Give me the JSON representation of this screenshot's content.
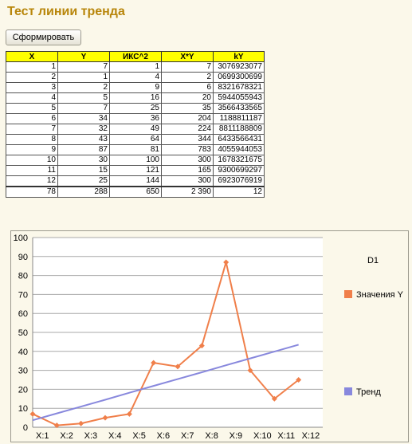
{
  "app": {
    "title": "Тест линии тренда"
  },
  "toolbar": {
    "generate_label": "Сформировать"
  },
  "table": {
    "headers": [
      "X",
      "Y",
      "ИКС^2",
      "X*Y",
      "kY"
    ],
    "rows": [
      [
        "1",
        "7",
        "1",
        "7",
        "3076923077"
      ],
      [
        "2",
        "1",
        "4",
        "2",
        "0699300699"
      ],
      [
        "3",
        "2",
        "9",
        "6",
        "8321678321"
      ],
      [
        "4",
        "5",
        "16",
        "20",
        "5944055943"
      ],
      [
        "5",
        "7",
        "25",
        "35",
        "3566433565"
      ],
      [
        "6",
        "34",
        "36",
        "204",
        "1188811187"
      ],
      [
        "7",
        "32",
        "49",
        "224",
        "8811188809"
      ],
      [
        "8",
        "43",
        "64",
        "344",
        "6433566431"
      ],
      [
        "9",
        "87",
        "81",
        "783",
        "4055944053"
      ],
      [
        "10",
        "30",
        "100",
        "300",
        "1678321675"
      ],
      [
        "11",
        "15",
        "121",
        "165",
        "9300699297"
      ],
      [
        "12",
        "25",
        "144",
        "300",
        "6923076919"
      ]
    ],
    "totals": [
      "78",
      "288",
      "650",
      "2 390",
      "12"
    ]
  },
  "chart_data": {
    "type": "line",
    "title": "D1",
    "categories": [
      "X:1",
      "X:2",
      "X:3",
      "X:4",
      "X:5",
      "X:6",
      "X:7",
      "X:8",
      "X:9",
      "X:10",
      "X:11",
      "X:12"
    ],
    "ylim": [
      0,
      100
    ],
    "y_ticks": [
      "0",
      "10",
      "20",
      "30",
      "40",
      "50",
      "60",
      "70",
      "80",
      "90",
      "100"
    ],
    "grid": true,
    "legend_position": "right",
    "series": [
      {
        "name": "Значения Y",
        "color": "#f07f4a",
        "marker": "diamond",
        "values": [
          7,
          1,
          2,
          5,
          7,
          34,
          32,
          43,
          87,
          30,
          15,
          25
        ]
      },
      {
        "name": "Тренд",
        "color": "#8888dd",
        "marker": "none",
        "values": [
          3.7,
          7.3,
          10.9,
          14.5,
          18.2,
          21.8,
          25.4,
          29.0,
          32.7,
          36.3,
          39.9,
          43.5
        ]
      }
    ]
  }
}
